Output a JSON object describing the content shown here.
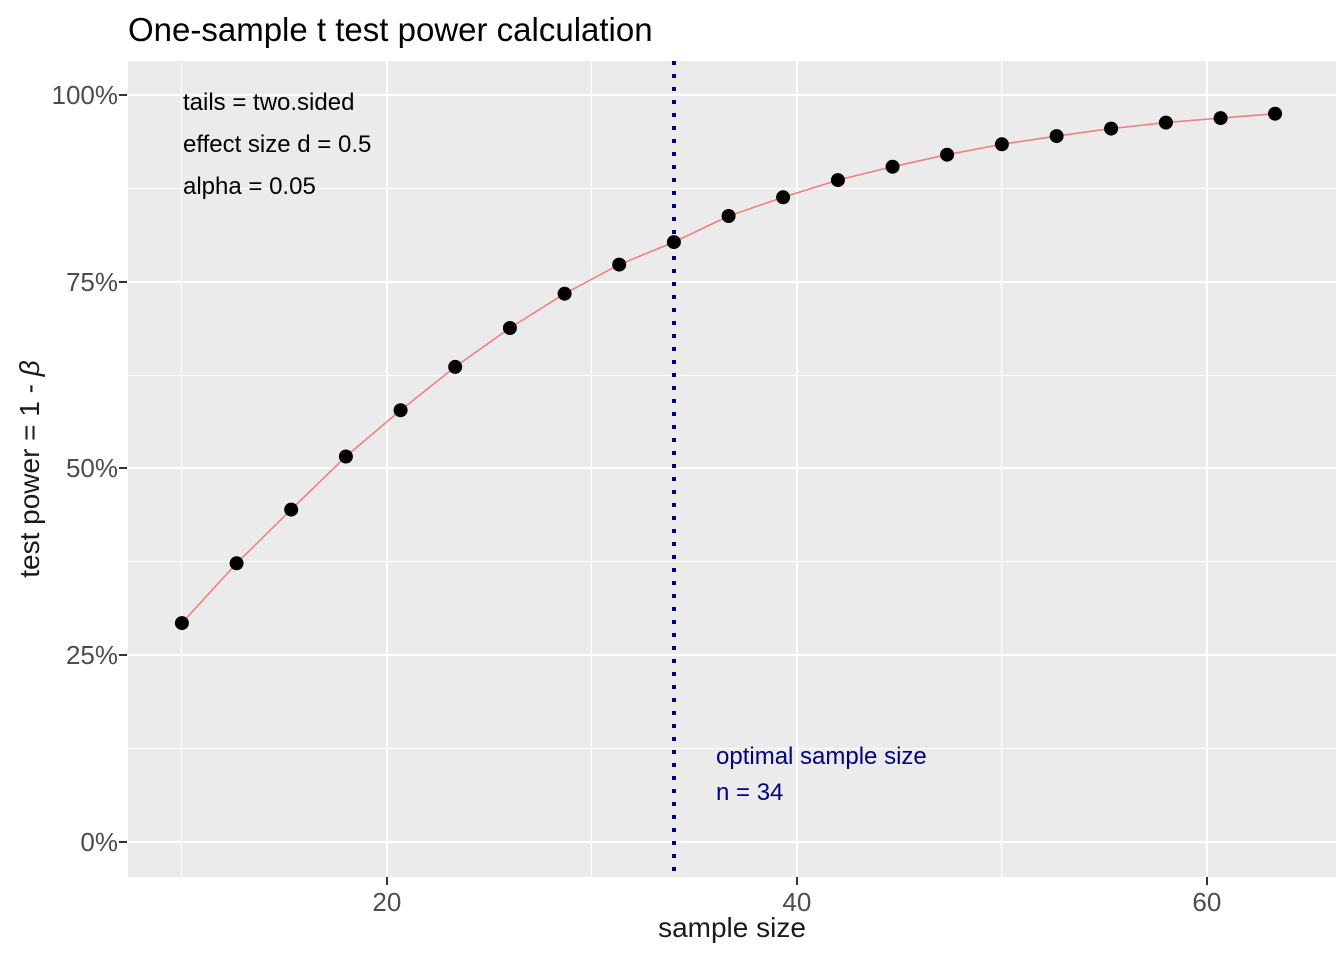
{
  "chart_data": {
    "type": "line",
    "title": "One-sample t test power calculation",
    "xlabel": "sample size",
    "ylabel": "test power = 1 - β",
    "ylabel_parts": {
      "prefix": "test power = 1 - ",
      "symbol": "β"
    },
    "xlim": [
      7.37,
      66.3
    ],
    "ylim_percent": [
      -4.69,
      104.55
    ],
    "grid": true,
    "legend": "none",
    "x_major_ticks": [
      {
        "value": 20,
        "label": "20"
      },
      {
        "value": 40,
        "label": "40"
      },
      {
        "value": 60,
        "label": "60"
      }
    ],
    "x_minor_gridlines": [
      10,
      30,
      50
    ],
    "y_major_ticks": [
      {
        "value": 0,
        "label": "0%"
      },
      {
        "value": 25,
        "label": "25%"
      },
      {
        "value": 50,
        "label": "50%"
      },
      {
        "value": 75,
        "label": "75%"
      },
      {
        "value": 100,
        "label": "100%"
      }
    ],
    "y_minor_gridlines": [
      12.5,
      37.5,
      62.5,
      87.5
    ],
    "series": [
      {
        "name": "power-curve",
        "line_color": "#F08080",
        "point_color": "#000000",
        "x": [
          10,
          12.67,
          15.33,
          18,
          20.67,
          23.33,
          26,
          28.67,
          31.33,
          34,
          36.67,
          39.33,
          42,
          44.67,
          47.33,
          50,
          52.67,
          55.33,
          58,
          60.67,
          63.33
        ],
        "y_percent": [
          29.3,
          37.3,
          44.5,
          51.6,
          57.8,
          63.6,
          68.8,
          73.4,
          77.3,
          80.3,
          83.8,
          86.3,
          88.6,
          90.4,
          92.0,
          93.4,
          94.5,
          95.5,
          96.3,
          96.9,
          97.5
        ]
      }
    ],
    "vline": {
      "x": 34,
      "linetype": "dotted",
      "color": "#000080"
    },
    "annotations": {
      "tails": "tails = two.sided",
      "effect_size": "effect size d = 0.5",
      "alpha": "alpha = 0.05",
      "optimal_label": "optimal sample size",
      "optimal_n": "n = 34"
    },
    "colors": {
      "panel_background": "#EBEBEB",
      "gridline": "#FFFFFF",
      "line": "#F08080",
      "point": "#000000",
      "vline": "#000080",
      "annotation_navy": "#000080",
      "tick_label": "#4D4D4D",
      "tick_mark": "#333333",
      "title": "#000000"
    }
  }
}
